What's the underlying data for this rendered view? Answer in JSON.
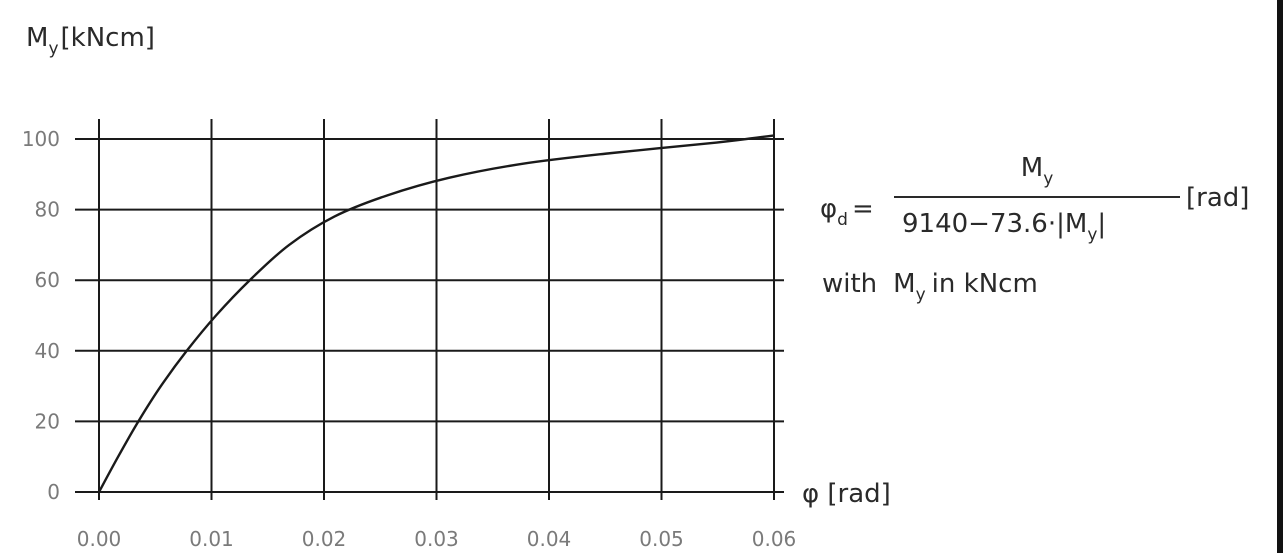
{
  "chart_data": {
    "type": "line",
    "ylabel_main": "M",
    "ylabel_sub": "y",
    "ylabel_unit": "[kNcm]",
    "xlabel": "φ [rad]",
    "xlim": [
      0,
      0.06
    ],
    "ylim": [
      0,
      100
    ],
    "x_ticks": [
      "0.00",
      "0.01",
      "0.02",
      "0.03",
      "0.04",
      "0.05",
      "0.06"
    ],
    "y_ticks": [
      "0",
      "20",
      "40",
      "60",
      "80",
      "100"
    ],
    "grid": true,
    "series": [
      {
        "x": [
          0,
          0.0017,
          0.0035,
          0.0055,
          0.0078,
          0.0104,
          0.0134,
          0.0169,
          0.0209,
          0.0256,
          0.0311,
          0.0377,
          0.0455,
          0.0549,
          0.06
        ],
        "y": [
          0,
          10,
          20,
          30,
          40,
          50,
          60,
          70,
          78,
          84,
          89,
          93,
          96,
          99,
          101
        ]
      }
    ],
    "annotation": {
      "lhs_symbol": "φ",
      "lhs_sub": "d",
      "equals": "=",
      "num_main": "M",
      "num_sub": "y",
      "den_text": "9140−73.6·|M",
      "den_sub": "y",
      "den_close": "|",
      "unit": "[rad]",
      "note_with": "with",
      "note_sym": "M",
      "note_sub": "y",
      "note_rest": "in kNcm"
    }
  }
}
